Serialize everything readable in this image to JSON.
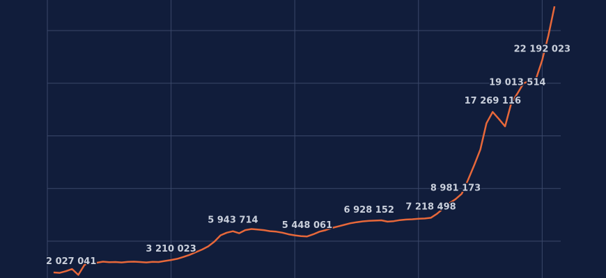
{
  "chart_data": {
    "type": "line",
    "x": [
      0.5,
      1,
      1.5,
      2,
      2.5,
      3,
      3.5,
      4,
      4.5,
      5,
      5.5,
      6,
      6.5,
      7,
      7.5,
      8,
      8.5,
      9,
      9.5,
      10,
      10.5,
      11,
      11.5,
      12,
      12.5,
      13,
      13.5,
      14,
      14.5,
      15,
      15.5,
      16,
      16.5,
      17,
      17.5,
      18,
      18.5,
      19,
      19.5,
      20,
      20.5,
      21,
      21.5,
      22,
      22.5,
      23,
      23.5,
      24,
      24.5,
      25,
      25.5,
      26,
      26.5,
      27,
      27.5,
      28,
      28.5,
      29,
      29.5,
      30,
      30.5,
      31,
      31.5,
      32,
      32.5,
      33,
      33.5,
      34,
      34.5,
      35,
      35.5,
      36,
      36.5,
      37,
      37.5,
      38,
      38.5,
      39,
      39.5,
      40,
      40.5,
      41
    ],
    "series": [
      {
        "color": "#e8683a",
        "values": [
          2027041,
          1990000,
          2150000,
          2350000,
          1800000,
          2750000,
          2900000,
          2950000,
          3050000,
          3000000,
          3020000,
          2980000,
          3030000,
          3050000,
          3020000,
          2980000,
          3040000,
          3020000,
          3120000,
          3210023,
          3320000,
          3500000,
          3700000,
          3950000,
          4200000,
          4500000,
          4950000,
          5550000,
          5800000,
          5943714,
          5750000,
          6050000,
          6150000,
          6100000,
          6050000,
          5950000,
          5900000,
          5800000,
          5650000,
          5550000,
          5480000,
          5448061,
          5650000,
          5900000,
          6050000,
          6250000,
          6400000,
          6550000,
          6700000,
          6800000,
          6880000,
          6928152,
          6950000,
          6980000,
          6850000,
          6900000,
          7000000,
          7050000,
          7080000,
          7120000,
          7150000,
          7218498,
          7600000,
          8100000,
          8600000,
          8981173,
          9500000,
          10800000,
          12200000,
          13700000,
          16200000,
          17269116,
          16600000,
          15900000,
          18100000,
          19013514,
          20000000,
          20200000,
          20400000,
          22192023,
          24500000,
          27300000
        ],
        "value_labels": [
          "2 027 041",
          null,
          null,
          null,
          null,
          null,
          null,
          null,
          null,
          null,
          null,
          null,
          null,
          null,
          null,
          null,
          null,
          null,
          null,
          "3 210 023",
          null,
          null,
          null,
          null,
          null,
          null,
          null,
          null,
          null,
          "5 943 714",
          null,
          null,
          null,
          null,
          null,
          null,
          null,
          null,
          null,
          null,
          null,
          "5 448 061",
          null,
          null,
          null,
          null,
          null,
          null,
          null,
          null,
          null,
          "6 928 152",
          null,
          null,
          null,
          null,
          null,
          null,
          null,
          null,
          null,
          "7 218 498",
          null,
          null,
          null,
          "8 981 173",
          null,
          null,
          null,
          null,
          null,
          "17 269 116",
          null,
          null,
          null,
          "19 013 514",
          null,
          null,
          null,
          "22 192 023",
          null,
          null
        ]
      }
    ],
    "xlim": [
      0,
      41.5
    ],
    "xticks": [
      0,
      10,
      20,
      30,
      40
    ],
    "ylim": [
      1500000,
      27900000
    ],
    "yticks": [
      5000000,
      10000000,
      15000000,
      20000000,
      25000000
    ],
    "grid": true,
    "grid_color": "#3b486a"
  }
}
